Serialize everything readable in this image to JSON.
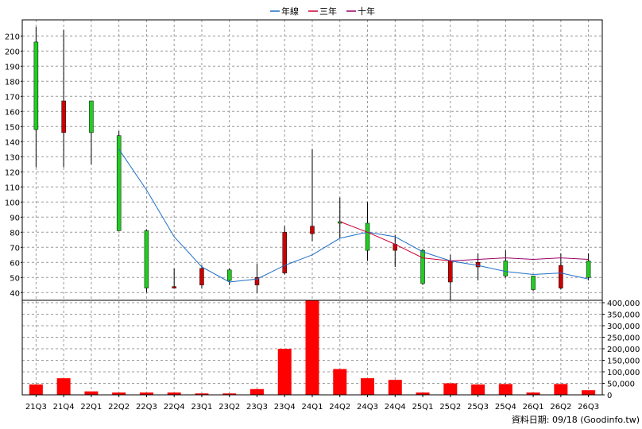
{
  "chart_data": {
    "type": "candlestick",
    "legend": [
      {
        "name": "年線",
        "color": "#1f6fc7"
      },
      {
        "name": "三年",
        "color": "#cc0033"
      },
      {
        "name": "十年",
        "color": "#990066"
      }
    ],
    "legend_position": "top-center",
    "grid": true,
    "categories": [
      "21Q3",
      "21Q4",
      "22Q1",
      "22Q2",
      "22Q3",
      "22Q4",
      "23Q1",
      "23Q2",
      "23Q3",
      "23Q4",
      "24Q1",
      "24Q2",
      "24Q3",
      "24Q4",
      "25Q1",
      "25Q2",
      "25Q3",
      "25Q4",
      "26Q1",
      "26Q2",
      "26Q3"
    ],
    "price_axis": {
      "ylim": [
        37,
        217
      ],
      "ticks": [
        40,
        50,
        60,
        70,
        80,
        90,
        100,
        110,
        120,
        130,
        140,
        150,
        160,
        170,
        180,
        190,
        200,
        210
      ],
      "side": "left"
    },
    "candles": [
      {
        "o": 148,
        "h": 216,
        "l": 123,
        "c": 206
      },
      {
        "o": 167,
        "h": 214,
        "l": 123,
        "c": 146
      },
      {
        "o": 146,
        "h": 167,
        "l": 125,
        "c": 167
      },
      {
        "o": 81,
        "h": 147,
        "l": 81,
        "c": 144
      },
      {
        "o": 43,
        "h": 82,
        "l": 40,
        "c": 81
      },
      {
        "o": 44,
        "h": 56,
        "l": 43,
        "c": 43
      },
      {
        "o": 56,
        "h": 58,
        "l": 43,
        "c": 45
      },
      {
        "o": 48,
        "h": 56,
        "l": 45,
        "c": 55
      },
      {
        "o": 50,
        "h": 59,
        "l": 40,
        "c": 45
      },
      {
        "o": 80,
        "h": 84,
        "l": 52,
        "c": 53
      },
      {
        "o": 84,
        "h": 135,
        "l": 74,
        "c": 79
      },
      {
        "o": 86,
        "h": 103,
        "l": 76,
        "c": 87
      },
      {
        "o": 68,
        "h": 100,
        "l": 61,
        "c": 86
      },
      {
        "o": 72,
        "h": 78,
        "l": 57,
        "c": 68
      },
      {
        "o": 46,
        "h": 69,
        "l": 45,
        "c": 68
      },
      {
        "o": 61,
        "h": 65,
        "l": 35,
        "c": 47
      },
      {
        "o": 60,
        "h": 66,
        "l": 48,
        "c": 57
      },
      {
        "o": 51,
        "h": 68,
        "l": 50,
        "c": 61
      },
      {
        "o": 42,
        "h": 51,
        "l": 41,
        "c": 51
      },
      {
        "o": 58,
        "h": 66,
        "l": 42,
        "c": 43
      },
      {
        "o": 50,
        "h": 66,
        "l": 48,
        "c": 61
      }
    ],
    "series": [
      {
        "name": "年線",
        "color": "#1f6fc7",
        "values": [
          null,
          null,
          null,
          135,
          108,
          77,
          57,
          47,
          49,
          58,
          65,
          76,
          80,
          77,
          67,
          61,
          58,
          54,
          52,
          53,
          49
        ]
      },
      {
        "name": "三年",
        "color": "#cc0033",
        "values": [
          null,
          null,
          null,
          null,
          null,
          null,
          null,
          null,
          null,
          null,
          null,
          87,
          80,
          72,
          63,
          61,
          null,
          null,
          null,
          null,
          null
        ]
      },
      {
        "name": "十年",
        "color": "#990066",
        "values": [
          null,
          null,
          null,
          null,
          null,
          null,
          null,
          null,
          null,
          null,
          null,
          null,
          null,
          null,
          null,
          61,
          62,
          63,
          62,
          63,
          62
        ]
      }
    ],
    "volume_axis": {
      "ylim": [
        0,
        400000
      ],
      "ticks": [
        0,
        50000,
        100000,
        150000,
        200000,
        250000,
        300000,
        350000,
        400000
      ],
      "tick_labels": [
        "0",
        "50,000",
        "100,000",
        "150,000",
        "200,000",
        "250,000",
        "300,000",
        "350,000",
        "400,000"
      ],
      "side": "right"
    },
    "volume": [
      45000,
      72000,
      15000,
      10000,
      10000,
      10000,
      6000,
      6000,
      25000,
      200000,
      410000,
      112000,
      72000,
      65000,
      10000,
      50000,
      45000,
      47000,
      10000,
      47000,
      20000
    ],
    "colors": {
      "up": "#22cc22",
      "down": "#cc0000",
      "volume": "#ff0000",
      "grid": "#999999",
      "wick": "#000000"
    }
  },
  "footer": {
    "credit": "資料日期: 09/18  (Goodinfo.tw)"
  }
}
